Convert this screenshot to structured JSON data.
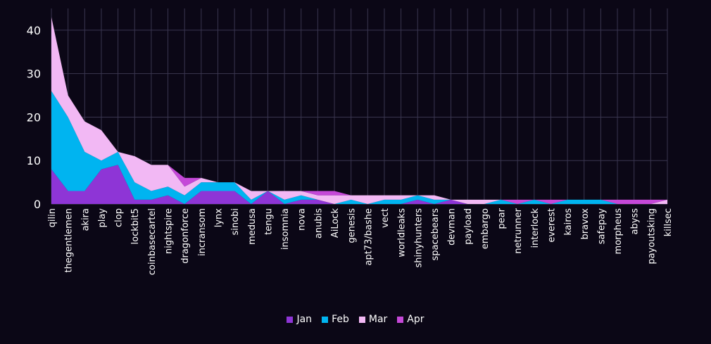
{
  "chart_data": {
    "type": "area",
    "stacked": true,
    "title": "",
    "xlabel": "",
    "ylabel": "",
    "ylim": [
      0,
      45
    ],
    "yticks": [
      0,
      10,
      20,
      30,
      40
    ],
    "grid": true,
    "legend_position": "bottom",
    "categories": [
      "qilin",
      "thegentlemen",
      "akira",
      "play",
      "clop",
      "lockbit5",
      "coinbasecartel",
      "nightspire",
      "dragonforce",
      "incransom",
      "lynx",
      "sinobi",
      "medusa",
      "tengu",
      "insomnia",
      "nova",
      "anubis",
      "AiLock",
      "genesis",
      "apt73/bashe",
      "vect",
      "worldleaks",
      "shinyhunters",
      "spacebears",
      "devman",
      "payload",
      "embargo",
      "pear",
      "netrunner",
      "interlock",
      "everest",
      "kairos",
      "bravox",
      "safepay",
      "morpheus",
      "abyss",
      "payoutsking",
      "killsec"
    ],
    "series": [
      {
        "name": "Jan",
        "color": "#8e35d6",
        "values": [
          8,
          3,
          3,
          8,
          9,
          1,
          1,
          2,
          0,
          3,
          3,
          3,
          0,
          3,
          0,
          1,
          1,
          0,
          0,
          0,
          0,
          0,
          1,
          0,
          1,
          0,
          0,
          0,
          0,
          0,
          0,
          0,
          0,
          0,
          0,
          0,
          0,
          0
        ]
      },
      {
        "name": "Feb",
        "color": "#00b4f0",
        "values": [
          18,
          17,
          9,
          2,
          3,
          4,
          2,
          2,
          2,
          2,
          2,
          2,
          1,
          0,
          1,
          1,
          0,
          0,
          1,
          0,
          1,
          1,
          1,
          1,
          0,
          0,
          0,
          1,
          0,
          1,
          0,
          1,
          1,
          1,
          0,
          0,
          0,
          0
        ]
      },
      {
        "name": "Mar",
        "color": "#f2b8f4",
        "values": [
          17,
          5,
          7,
          7,
          0,
          6,
          6,
          5,
          2,
          1,
          0,
          0,
          2,
          0,
          2,
          1,
          1,
          2,
          1,
          2,
          1,
          1,
          0,
          1,
          0,
          1,
          1,
          0,
          0,
          0,
          0,
          0,
          0,
          0,
          0,
          0,
          0,
          1
        ]
      },
      {
        "name": "Apr",
        "color": "#c548d8",
        "values": [
          0,
          0,
          0,
          0,
          0,
          0,
          0,
          0,
          2,
          0,
          0,
          0,
          0,
          0,
          0,
          0,
          1,
          1,
          0,
          0,
          0,
          0,
          0,
          0,
          0,
          0,
          0,
          0,
          1,
          0,
          1,
          0,
          0,
          0,
          1,
          1,
          1,
          0
        ]
      }
    ]
  }
}
